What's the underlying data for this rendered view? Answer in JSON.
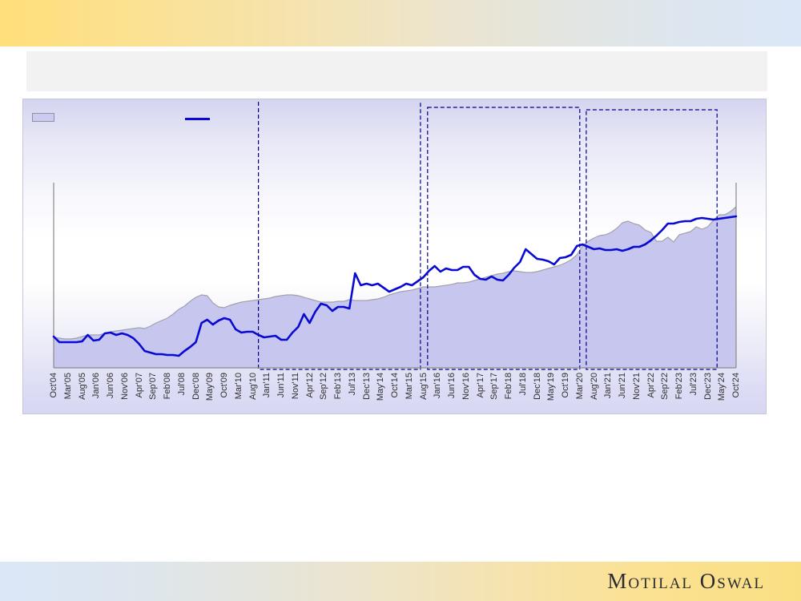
{
  "slide": {
    "title_placeholder_text": "",
    "brand": "Motilal Oswal"
  },
  "theme": {
    "banner_yellow": "#fadf82",
    "banner_blue": "#dbe7f7",
    "title_box_fill": "#f2f2f2",
    "chart_bg_top": "#d4d4f0",
    "chart_bg_mid": "#ffffff",
    "chart_bg_bottom": "#d7d7f3",
    "axis_color": "#8a8a8a",
    "tick_label_color": "#303030"
  },
  "chart_data": {
    "type": "line",
    "x_start": "Oct'04",
    "x_end": "Oct'24",
    "x_month_span": 240,
    "sample_step_months": 2,
    "y_axis": "unlabeled (relative rebased units, read from pixel heights)",
    "grid": false,
    "tick_labels": [
      "Oct'04",
      "Mar'05",
      "Aug'05",
      "Jan'06",
      "Jun'06",
      "Nov'06",
      "Apr'07",
      "Sep'07",
      "Feb'08",
      "Jul'08",
      "Dec'08",
      "May'09",
      "Oct'09",
      "Mar'10",
      "Aug'10",
      "Jan'11",
      "Jun'11",
      "Nov'11",
      "Apr'12",
      "Sep'12",
      "Feb'13",
      "Jul'13",
      "Dec'13",
      "May'14",
      "Oct'14",
      "Mar'15",
      "Aug'15",
      "Jan'16",
      "Jun'16",
      "Nov'16",
      "Apr'17",
      "Sep'17",
      "Feb'18",
      "Jul'18",
      "Dec'18",
      "May'19",
      "Oct'19",
      "Mar'20",
      "Aug'20",
      "Jan'21",
      "Jun'21",
      "Nov'21",
      "Apr'22",
      "Sep'22",
      "Feb'23",
      "Jul'23",
      "Dec'23",
      "May'24",
      "Oct'24"
    ],
    "legend": [
      {
        "label": "",
        "swatch": "area",
        "color": "#ccccf2"
      },
      {
        "label": "",
        "swatch": "line",
        "color": "#0a0ad2"
      }
    ],
    "series": [
      {
        "name": "shaded-area-series",
        "style": "area",
        "fill": "#c6c6ef",
        "edge_color": "#a2a2aa",
        "values": [
          19,
          18.5,
          18,
          18,
          18.5,
          19.5,
          20.5,
          20.5,
          20.5,
          21.5,
          22.5,
          23,
          23.5,
          24,
          24.5,
          25,
          24.5,
          26,
          28,
          29.5,
          31,
          33.5,
          36.5,
          38.5,
          41.5,
          44,
          45.5,
          45,
          40.5,
          38,
          37.5,
          39,
          40,
          41,
          41.5,
          42,
          42.5,
          43,
          43.5,
          44.5,
          45,
          45.5,
          45.5,
          45,
          44,
          43,
          42,
          41,
          41,
          41,
          41.5,
          41.5,
          42.5,
          42,
          42,
          42,
          42.5,
          43,
          44,
          45.5,
          46.5,
          47.5,
          48,
          48.5,
          49.5,
          50.5,
          50.5,
          50.5,
          51,
          51.5,
          52,
          53,
          53,
          53.5,
          54.5,
          55.5,
          56.5,
          57.5,
          58.5,
          59,
          60,
          60.5,
          60,
          59.5,
          59.5,
          60,
          61,
          62,
          63,
          64,
          65.5,
          67.5,
          70.5,
          76,
          79,
          81,
          82.5,
          83,
          84.5,
          87,
          90.5,
          91.5,
          90,
          89,
          86,
          84.5,
          79,
          79,
          81.5,
          78.5,
          83,
          84,
          85,
          88,
          86.5,
          88,
          92,
          95.5,
          95.5,
          97.5,
          100.5
        ]
      },
      {
        "name": "blue-line-series",
        "style": "line",
        "color": "#0a0ad2",
        "values": [
          19.5,
          16,
          16,
          16,
          16,
          16.5,
          20.5,
          17,
          17.5,
          21.5,
          22,
          20.5,
          21.5,
          20.5,
          18.5,
          15,
          10.5,
          9.5,
          8.5,
          8.5,
          8,
          8,
          7.5,
          10.5,
          13,
          16,
          28,
          30,
          27,
          29.5,
          31,
          30,
          24,
          22,
          22.5,
          22.5,
          20.5,
          19,
          19.5,
          20,
          17.5,
          17.5,
          22,
          25.5,
          33.5,
          28,
          35,
          40,
          39,
          35.5,
          38,
          38,
          37,
          59,
          51.5,
          52.5,
          51.5,
          52.5,
          50,
          47.5,
          49,
          50.5,
          52.5,
          51.5,
          54,
          56.5,
          60.5,
          63.5,
          60,
          62,
          61,
          61,
          63,
          63,
          58,
          55.5,
          55,
          57,
          55,
          54.5,
          58,
          62.5,
          66,
          74,
          71,
          68,
          67.5,
          66.5,
          64.5,
          68.5,
          69,
          70.5,
          76,
          77,
          75.5,
          74,
          74.5,
          73.5,
          73.5,
          74,
          73,
          74,
          75.5,
          75.5,
          77,
          79.5,
          82.5,
          86,
          90,
          90,
          91,
          91.5,
          91.5,
          93,
          93.5,
          93,
          92.5,
          93,
          93.5,
          94,
          94.5
        ]
      }
    ],
    "annotations": {
      "dashed_box_color": "#00008b",
      "dashed_boxes": [
        {
          "approx_from": "Oct'10",
          "approx_to": "Jul'15",
          "from_month_index": 72,
          "to_month_index": 129,
          "top_edge": null
        },
        {
          "approx_from": "Sep'15",
          "approx_to": "Mar'20",
          "from_month_index": 131.5,
          "to_month_index": 185,
          "top_edge": 10
        },
        {
          "approx_from": "May'20",
          "approx_to": "Mar'24",
          "from_month_index": 187.3,
          "to_month_index": 233.3,
          "top_edge": 13
        }
      ]
    }
  }
}
